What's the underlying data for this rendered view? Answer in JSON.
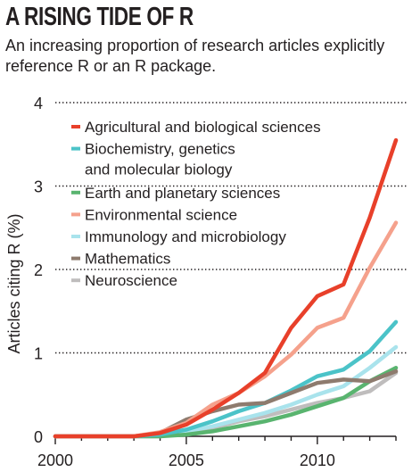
{
  "chart_data": {
    "type": "line",
    "title": "A RISING TIDE OF R",
    "subtitle": "An increasing proportion of research articles explicitly reference R or an R package.",
    "ylabel": "Articles citing R (%)",
    "xlabel": "",
    "xlim": [
      2000,
      2013
    ],
    "ylim": [
      0,
      4
    ],
    "x_ticks": [
      2000,
      2005,
      2010
    ],
    "y_ticks": [
      0,
      1,
      2,
      3,
      4
    ],
    "grid": "dotted horizontal",
    "legend_position": "top-left",
    "x": [
      2000,
      2001,
      2002,
      2003,
      2004,
      2005,
      2006,
      2007,
      2008,
      2009,
      2010,
      2011,
      2012,
      2013
    ],
    "series": [
      {
        "name": "Agricultural and biological sciences",
        "color": "#e8402a",
        "values": [
          0.0,
          0.0,
          0.0,
          0.0,
          0.04,
          0.14,
          0.32,
          0.52,
          0.76,
          1.3,
          1.68,
          1.82,
          2.62,
          3.55
        ]
      },
      {
        "name": "Biochemistry, genetics|and molecular biology",
        "color": "#4bc3c8",
        "values": [
          0.0,
          0.0,
          0.0,
          0.0,
          0.02,
          0.08,
          0.18,
          0.3,
          0.4,
          0.55,
          0.72,
          0.8,
          1.02,
          1.37
        ]
      },
      {
        "name": "Earth and planetary sciences",
        "color": "#59b46f",
        "values": [
          0.0,
          0.0,
          0.0,
          0.0,
          0.0,
          0.02,
          0.06,
          0.12,
          0.18,
          0.26,
          0.36,
          0.46,
          0.66,
          0.82
        ]
      },
      {
        "name": "Environmental science",
        "color": "#f5a18c",
        "values": [
          0.0,
          0.0,
          0.0,
          0.0,
          0.05,
          0.16,
          0.38,
          0.52,
          0.72,
          0.98,
          1.3,
          1.42,
          2.02,
          2.56
        ]
      },
      {
        "name": "Immunology and microbiology",
        "color": "#a9e3ec",
        "values": [
          0.0,
          0.0,
          0.0,
          0.0,
          0.01,
          0.06,
          0.12,
          0.2,
          0.28,
          0.38,
          0.5,
          0.6,
          0.82,
          1.07
        ]
      },
      {
        "name": "Mathematics",
        "color": "#8e7b6e",
        "values": [
          0.0,
          0.0,
          0.0,
          0.0,
          0.04,
          0.2,
          0.3,
          0.38,
          0.4,
          0.52,
          0.64,
          0.68,
          0.66,
          0.78
        ]
      },
      {
        "name": "Neuroscience",
        "color": "#bfbdbd",
        "values": [
          0.0,
          0.0,
          0.0,
          0.0,
          0.0,
          0.04,
          0.1,
          0.18,
          0.24,
          0.32,
          0.4,
          0.46,
          0.54,
          0.76
        ]
      }
    ]
  }
}
